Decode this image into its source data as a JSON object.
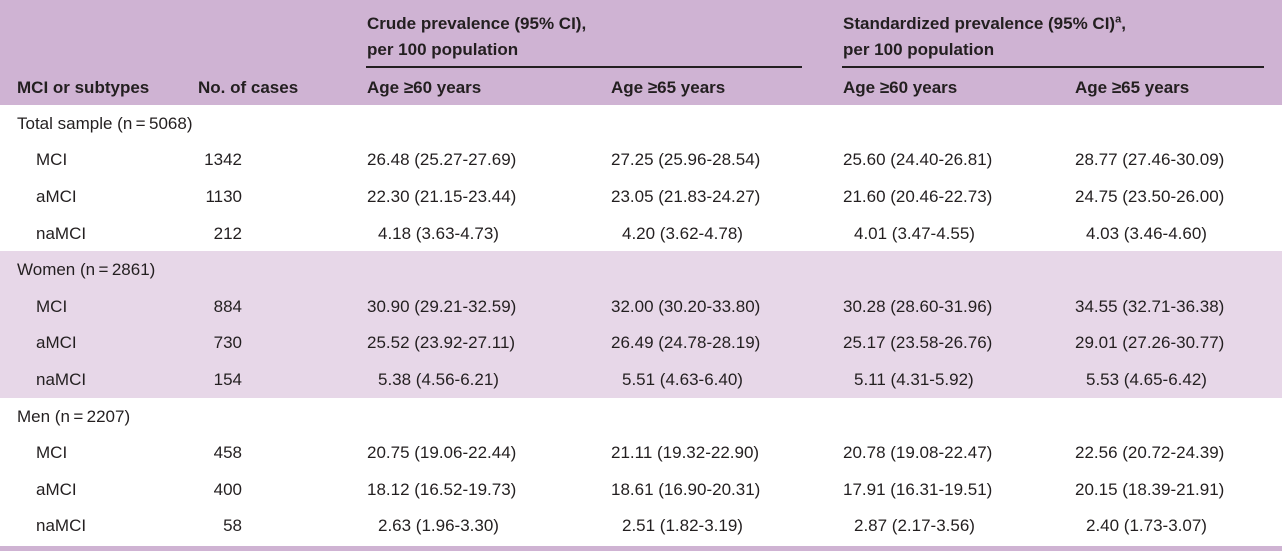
{
  "header": {
    "crude_title": "Crude prevalence (95% CI),",
    "crude_subtitle": "per 100 population",
    "std_title": "Standardized prevalence (95% CI)",
    "std_superscript": "a",
    "std_title_suffix": ",",
    "std_subtitle": "per 100 population",
    "columns": [
      "MCI or subtypes",
      "No. of cases",
      "Age ≥60 years",
      "Age ≥65 years",
      "Age ≥60 years",
      "Age ≥65 years"
    ]
  },
  "sections": [
    {
      "label": "Total sample (n = 5068)",
      "rows": [
        {
          "subtype": "MCI",
          "cases": "1342",
          "crude60": "26.48 (25.27-27.69)",
          "crude65": "27.25 (25.96-28.54)",
          "std60": "25.60 (24.40-26.81)",
          "std65": "28.77 (27.46-30.09)"
        },
        {
          "subtype": "aMCI",
          "cases": "1130",
          "crude60": "22.30 (21.15-23.44)",
          "crude65": "23.05 (21.83-24.27)",
          "std60": "21.60 (20.46-22.73)",
          "std65": "24.75 (23.50-26.00)"
        },
        {
          "subtype": "naMCI",
          "cases": "212",
          "crude60": "4.18 (3.63-4.73)",
          "crude65": "4.20 (3.62-4.78)",
          "std60": "4.01 (3.47-4.55)",
          "std65": "4.03 (3.46-4.60)"
        }
      ]
    },
    {
      "label": "Women (n = 2861)",
      "rows": [
        {
          "subtype": "MCI",
          "cases": "884",
          "crude60": "30.90 (29.21-32.59)",
          "crude65": "32.00 (30.20-33.80)",
          "std60": "30.28 (28.60-31.96)",
          "std65": "34.55 (32.71-36.38)"
        },
        {
          "subtype": "aMCI",
          "cases": "730",
          "crude60": "25.52 (23.92-27.11)",
          "crude65": "26.49 (24.78-28.19)",
          "std60": "25.17 (23.58-26.76)",
          "std65": "29.01 (27.26-30.77)"
        },
        {
          "subtype": "naMCI",
          "cases": "154",
          "crude60": "5.38 (4.56-6.21)",
          "crude65": "5.51 (4.63-6.40)",
          "std60": "5.11 (4.31-5.92)",
          "std65": "5.53 (4.65-6.42)"
        }
      ]
    },
    {
      "label": "Men (n = 2207)",
      "rows": [
        {
          "subtype": "MCI",
          "cases": "458",
          "crude60": "20.75 (19.06-22.44)",
          "crude65": "21.11 (19.32-22.90)",
          "std60": "20.78 (19.08-22.47)",
          "std65": "22.56 (20.72-24.39)"
        },
        {
          "subtype": "aMCI",
          "cases": "400",
          "crude60": "18.12 (16.52-19.73)",
          "crude65": "18.61 (16.90-20.31)",
          "std60": "17.91 (16.31-19.51)",
          "std65": "20.15 (18.39-21.91)"
        },
        {
          "subtype": "naMCI",
          "cases": "58",
          "crude60": "2.63 (1.96-3.30)",
          "crude65": "2.51 (1.82-3.19)",
          "std60": "2.87 (2.17-3.56)",
          "std65": "2.40 (1.73-3.07)"
        }
      ]
    }
  ]
}
